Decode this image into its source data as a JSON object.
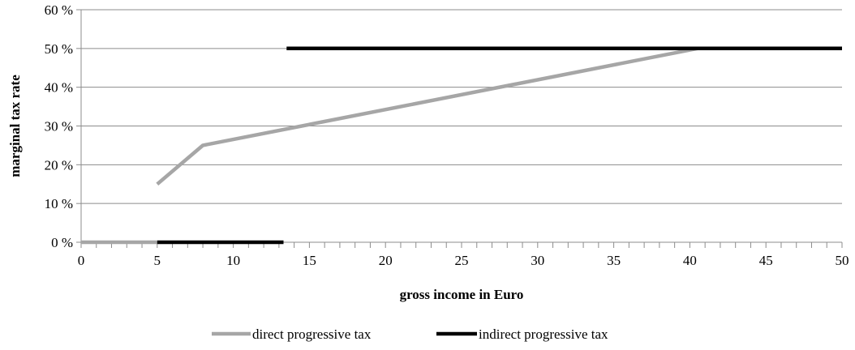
{
  "chart_data": {
    "type": "line",
    "title": "",
    "xlabel": "gross income in Euro",
    "ylabel": "marginal tax rate",
    "xlim": [
      0,
      50
    ],
    "ylim": [
      0,
      60
    ],
    "x_ticks": [
      "0",
      "5",
      "10",
      "15",
      "20",
      "25",
      "30",
      "35",
      "40",
      "45",
      "50"
    ],
    "y_ticks": [
      "0 %",
      "10 %",
      "20 %",
      "30 %",
      "40 %",
      "50 %",
      "60 %"
    ],
    "grid": "horizontal",
    "legend_position": "bottom",
    "series": [
      {
        "name": "direct progressive tax",
        "color": "#a6a6a6",
        "segments": [
          [
            [
              0,
              0
            ],
            [
              5,
              0
            ]
          ],
          [
            [
              5,
              15
            ],
            [
              8,
              25
            ],
            [
              40.5,
              50
            ],
            [
              50,
              50
            ]
          ]
        ]
      },
      {
        "name": "indirect progressive tax",
        "color": "#000000",
        "segments": [
          [
            [
              5,
              0
            ],
            [
              13.3,
              0
            ]
          ],
          [
            [
              13.5,
              50
            ],
            [
              50,
              50
            ]
          ]
        ]
      }
    ]
  }
}
